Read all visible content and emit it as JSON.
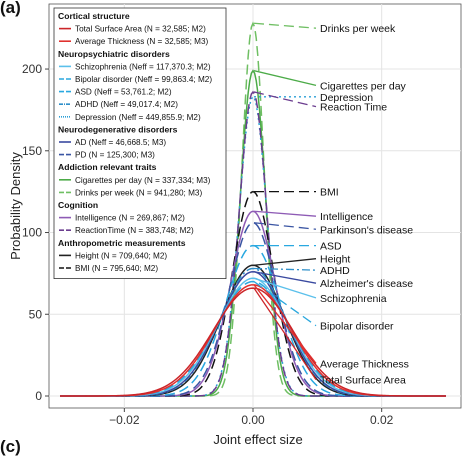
{
  "panel_labels": {
    "top": "(a)",
    "bottom": "(c)"
  },
  "chart_data": {
    "type": "line",
    "title": "",
    "xlabel": "Joint effect size",
    "ylabel": "Probability Density",
    "xlim": [
      -0.03,
      0.03
    ],
    "ylim": [
      0,
      230
    ],
    "x_ticks": [
      -0.02,
      0.0,
      0.02
    ],
    "x_tick_labels": [
      "−0.02",
      "0.00",
      "0.02"
    ],
    "y_ticks": [
      0,
      50,
      100,
      150,
      200
    ],
    "y_tick_labels": [
      "0",
      "50",
      "100",
      "150",
      "200"
    ],
    "grid": true,
    "legend_position": "top-left",
    "legend_groups": [
      {
        "heading": "Cortical structure",
        "entries": [
          {
            "key": "tsa",
            "label": "Total Surface Area (N = 32,585; M2)"
          },
          {
            "key": "avt",
            "label": "Average Thickness (N = 32,585; M3)"
          }
        ]
      },
      {
        "heading": "Neuropsychiatric disorders",
        "entries": [
          {
            "key": "scz",
            "label": "Schizophrenia (Neff = 117,370.3; M2)"
          },
          {
            "key": "bip",
            "label": "Bipolar disorder (Neff = 99,863.4; M2)"
          },
          {
            "key": "asd",
            "label": "ASD (Neff = 53,761.2; M2)"
          },
          {
            "key": "adhd",
            "label": "ADHD (Neff = 49,017.4; M2)"
          },
          {
            "key": "dep",
            "label": "Depression (Neff = 449,855.9; M2)"
          }
        ]
      },
      {
        "heading": "Neurodegenerative disorders",
        "entries": [
          {
            "key": "ad",
            "label": "AD (Neff = 46,668.5; M3)"
          },
          {
            "key": "pd",
            "label": "PD (N = 125,300; M3)"
          }
        ]
      },
      {
        "heading": "Addiction relevant traits",
        "entries": [
          {
            "key": "cig",
            "label": "Cigarettes per day (N = 337,334; M3)"
          },
          {
            "key": "drk",
            "label": "Drinks per week (N = 941,280; M3)"
          }
        ]
      },
      {
        "heading": "Cognition",
        "entries": [
          {
            "key": "int",
            "label": "Intelligence (N = 269,867; M2)"
          },
          {
            "key": "rt",
            "label": "ReactionTime (N = 383,748; M2)"
          }
        ]
      },
      {
        "heading": "Anthropometric measurements",
        "entries": [
          {
            "key": "hgt",
            "label": "Height (N = 709,640; M2)"
          },
          {
            "key": "bmi",
            "label": "BMI (N = 795,640; M2)"
          }
        ]
      }
    ],
    "series": [
      {
        "key": "drk",
        "label_on_plot": "Drinks per week",
        "color": "#6fbf63",
        "dash": "10,5",
        "peak": 228,
        "sd": 0.00175,
        "label_y": 225
      },
      {
        "key": "cig",
        "label_on_plot": "Cigarettes per day",
        "color": "#4cab48",
        "dash": "",
        "peak": 199,
        "sd": 0.002,
        "label_y": 190
      },
      {
        "key": "dep",
        "label_on_plot": "Depression",
        "color": "#2b9fd6",
        "dash": "2,3",
        "peak": 183,
        "sd": 0.00218,
        "label_y": 183
      },
      {
        "key": "rt",
        "label_on_plot": "Reaction Time",
        "color": "#6b3d8f",
        "dash": "10,5",
        "peak": 186,
        "sd": 0.00215,
        "label_y": 177
      },
      {
        "key": "bmi",
        "label_on_plot": "BMI",
        "color": "#111111",
        "dash": "10,5",
        "peak": 125,
        "sd": 0.0032,
        "label_y": 125
      },
      {
        "key": "int",
        "label_on_plot": "Intelligence",
        "color": "#8e5bb5",
        "dash": "",
        "peak": 113,
        "sd": 0.0035,
        "label_y": 110
      },
      {
        "key": "pd",
        "label_on_plot": "Parkinson's disease",
        "color": "#3a55a3",
        "dash": "10,5",
        "peak": 106,
        "sd": 0.0037,
        "label_y": 102
      },
      {
        "key": "asd",
        "label_on_plot": "ASD",
        "color": "#29a8e0",
        "dash": "10,5",
        "peak": 92,
        "sd": 0.0043,
        "label_y": 92
      },
      {
        "key": "hgt",
        "label_on_plot": "Height",
        "color": "#222222",
        "dash": "",
        "peak": 80,
        "sd": 0.0049,
        "label_y": 84
      },
      {
        "key": "adhd",
        "label_on_plot": "ADHD",
        "color": "#2e8fc9",
        "dash": "8,3,2,3",
        "peak": 78,
        "sd": 0.0051,
        "label_y": 77
      },
      {
        "key": "ad",
        "label_on_plot": "Alzheimer's disease",
        "color": "#3a4aa0",
        "dash": "",
        "peak": 76,
        "sd": 0.0052,
        "label_y": 69
      },
      {
        "key": "scz",
        "label_on_plot": "Schizophrenia",
        "color": "#5bc0eb",
        "dash": "",
        "peak": 72,
        "sd": 0.0055,
        "label_y": 60
      },
      {
        "key": "bip",
        "label_on_plot": "Bipolar disorder",
        "color": "#2aa7dd",
        "dash": "10,5",
        "peak": 70,
        "sd": 0.0057,
        "label_y": 43
      },
      {
        "key": "avt",
        "label_on_plot": "Average Thickness",
        "color": "#e0312f",
        "dash": "",
        "peak": 68,
        "sd": 0.0059,
        "label_y": 20
      },
      {
        "key": "tsa",
        "label_on_plot": "Total Surface Area",
        "color": "#cc2529",
        "dash": "",
        "peak": 66,
        "sd": 0.0062,
        "label_y": 10
      }
    ]
  }
}
